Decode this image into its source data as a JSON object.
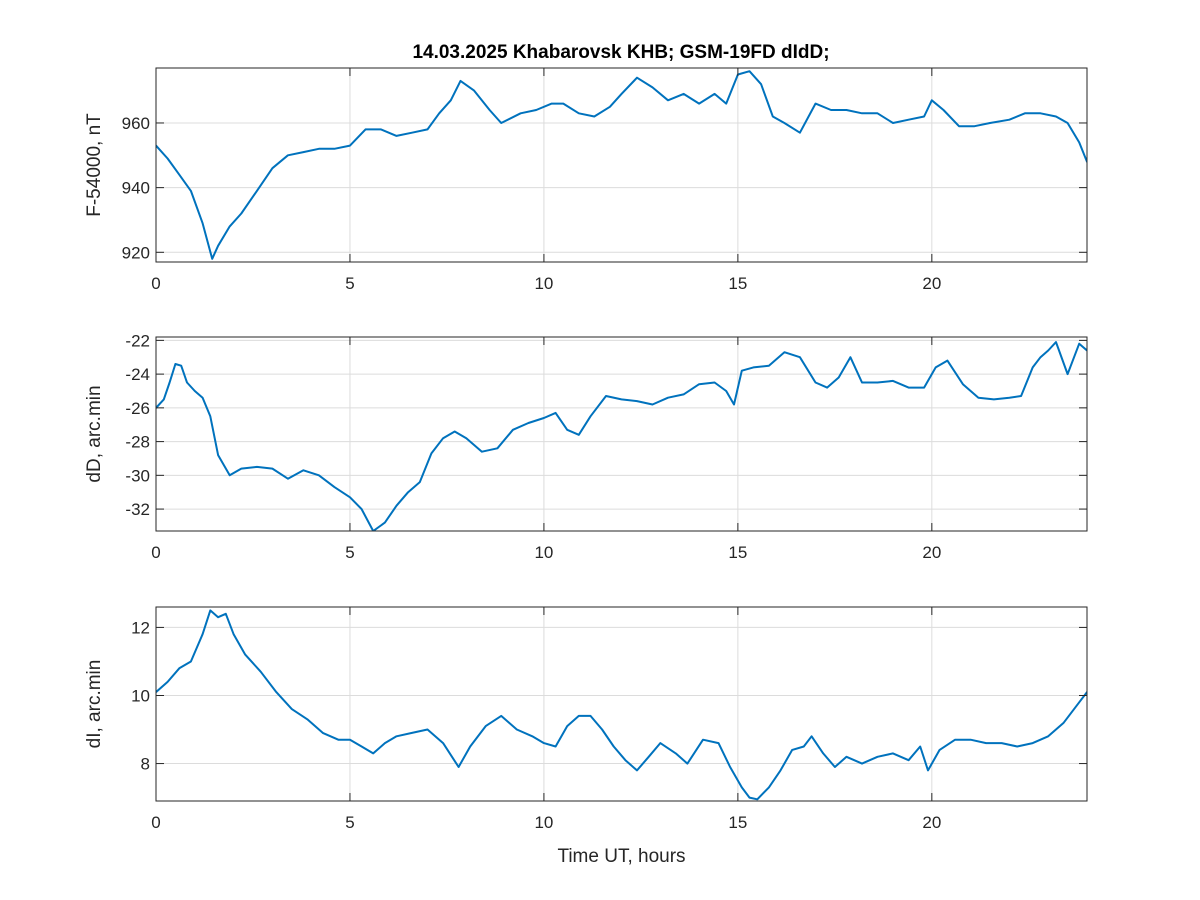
{
  "figure": {
    "title": "14.03.2025  Khabarovsk KHB; GSM-19FD dIdD;",
    "line_color": "#0072bd"
  },
  "chart_data": [
    {
      "type": "line",
      "ylabel": "F-54000, nT",
      "xlabel": "",
      "xlim": [
        0,
        24
      ],
      "ylim": [
        917,
        977
      ],
      "xticks": [
        0,
        5,
        10,
        15,
        20
      ],
      "yticks": [
        920,
        940,
        960
      ],
      "grid": true,
      "x": [
        0,
        0.3,
        0.6,
        0.9,
        1.2,
        1.45,
        1.6,
        1.9,
        2.2,
        2.6,
        3.0,
        3.4,
        3.8,
        4.2,
        4.6,
        5.0,
        5.4,
        5.8,
        6.2,
        6.6,
        7.0,
        7.3,
        7.6,
        7.85,
        8.2,
        8.6,
        8.9,
        9.4,
        9.8,
        10.2,
        10.5,
        10.9,
        11.3,
        11.7,
        12.0,
        12.4,
        12.8,
        13.2,
        13.6,
        14.0,
        14.4,
        14.7,
        15.0,
        15.3,
        15.6,
        15.9,
        16.2,
        16.6,
        17.0,
        17.4,
        17.8,
        18.2,
        18.6,
        19.0,
        19.4,
        19.8,
        20.0,
        20.3,
        20.7,
        21.1,
        21.5,
        22.0,
        22.4,
        22.8,
        23.2,
        23.5,
        23.8,
        24.0
      ],
      "values": [
        953,
        949,
        944,
        939,
        929,
        918,
        922,
        928,
        932,
        939,
        946,
        950,
        951,
        952,
        952,
        953,
        958,
        958,
        956,
        957,
        958,
        963,
        967,
        973,
        970,
        964,
        960,
        963,
        964,
        966,
        966,
        963,
        962,
        965,
        969,
        974,
        971,
        967,
        969,
        966,
        969,
        966,
        975,
        976,
        972,
        962,
        960,
        957,
        966,
        964,
        964,
        963,
        963,
        960,
        961,
        962,
        967,
        964,
        959,
        959,
        960,
        961,
        963,
        963,
        962,
        960,
        954,
        948
      ]
    },
    {
      "type": "line",
      "ylabel": "dD, arc.min",
      "xlabel": "",
      "xlim": [
        0,
        24
      ],
      "ylim": [
        -33.3,
        -21.8
      ],
      "xticks": [
        0,
        5,
        10,
        15,
        20
      ],
      "yticks": [
        -32,
        -30,
        -28,
        -26,
        -24,
        -22
      ],
      "grid": true,
      "x": [
        0,
        0.2,
        0.35,
        0.5,
        0.65,
        0.8,
        1.0,
        1.2,
        1.4,
        1.6,
        1.9,
        2.2,
        2.6,
        3.0,
        3.4,
        3.8,
        4.2,
        4.6,
        5.0,
        5.3,
        5.6,
        5.9,
        6.2,
        6.5,
        6.8,
        7.1,
        7.4,
        7.7,
        8.0,
        8.4,
        8.8,
        9.2,
        9.6,
        10.0,
        10.3,
        10.6,
        10.9,
        11.2,
        11.6,
        12.0,
        12.4,
        12.8,
        13.2,
        13.6,
        14.0,
        14.4,
        14.7,
        14.9,
        15.1,
        15.4,
        15.8,
        16.2,
        16.6,
        17.0,
        17.3,
        17.6,
        17.9,
        18.2,
        18.6,
        19.0,
        19.4,
        19.8,
        20.1,
        20.4,
        20.8,
        21.2,
        21.6,
        22.0,
        22.3,
        22.6,
        22.8,
        23.0,
        23.2,
        23.5,
        23.8,
        24.0
      ],
      "values": [
        -26,
        -25.5,
        -24.5,
        -23.4,
        -23.5,
        -24.5,
        -25,
        -25.4,
        -26.5,
        -28.8,
        -30,
        -29.6,
        -29.5,
        -29.6,
        -30.2,
        -29.7,
        -30,
        -30.7,
        -31.3,
        -32,
        -33.3,
        -32.8,
        -31.8,
        -31,
        -30.4,
        -28.7,
        -27.8,
        -27.4,
        -27.8,
        -28.6,
        -28.4,
        -27.3,
        -26.9,
        -26.6,
        -26.3,
        -27.3,
        -27.6,
        -26.5,
        -25.3,
        -25.5,
        -25.6,
        -25.8,
        -25.4,
        -25.2,
        -24.6,
        -24.5,
        -25,
        -25.8,
        -23.8,
        -23.6,
        -23.5,
        -22.7,
        -23,
        -24.5,
        -24.8,
        -24.2,
        -23,
        -24.5,
        -24.5,
        -24.4,
        -24.8,
        -24.8,
        -23.6,
        -23.2,
        -24.6,
        -25.4,
        -25.5,
        -25.4,
        -25.3,
        -23.6,
        -23,
        -22.6,
        -22.1,
        -24,
        -22.2,
        -22.6
      ]
    },
    {
      "type": "line",
      "ylabel": "dI, arc.min",
      "xlabel": "Time UT, hours",
      "xlim": [
        0,
        24
      ],
      "ylim": [
        6.9,
        12.6
      ],
      "xticks": [
        0,
        5,
        10,
        15,
        20
      ],
      "yticks": [
        8,
        10,
        12
      ],
      "grid": true,
      "x": [
        0,
        0.3,
        0.6,
        0.9,
        1.2,
        1.4,
        1.6,
        1.8,
        2.0,
        2.3,
        2.7,
        3.1,
        3.5,
        3.9,
        4.3,
        4.7,
        5.0,
        5.3,
        5.6,
        5.9,
        6.2,
        6.6,
        7.0,
        7.4,
        7.8,
        8.1,
        8.5,
        8.9,
        9.3,
        9.7,
        10.0,
        10.3,
        10.6,
        10.9,
        11.2,
        11.5,
        11.8,
        12.1,
        12.4,
        12.7,
        13.0,
        13.4,
        13.7,
        14.1,
        14.5,
        14.8,
        15.1,
        15.3,
        15.5,
        15.8,
        16.1,
        16.4,
        16.7,
        16.9,
        17.2,
        17.5,
        17.8,
        18.2,
        18.6,
        19.0,
        19.4,
        19.7,
        19.9,
        20.2,
        20.6,
        21.0,
        21.4,
        21.8,
        22.2,
        22.6,
        23.0,
        23.4,
        23.8,
        24.0
      ],
      "values": [
        10.1,
        10.4,
        10.8,
        11.0,
        11.8,
        12.5,
        12.3,
        12.4,
        11.8,
        11.2,
        10.7,
        10.1,
        9.6,
        9.3,
        8.9,
        8.7,
        8.7,
        8.5,
        8.3,
        8.6,
        8.8,
        8.9,
        9.0,
        8.6,
        7.9,
        8.5,
        9.1,
        9.4,
        9.0,
        8.8,
        8.6,
        8.5,
        9.1,
        9.4,
        9.4,
        9.0,
        8.5,
        8.1,
        7.8,
        8.2,
        8.6,
        8.3,
        8.0,
        8.7,
        8.6,
        7.9,
        7.3,
        7.0,
        6.95,
        7.3,
        7.8,
        8.4,
        8.5,
        8.8,
        8.3,
        7.9,
        8.2,
        8.0,
        8.2,
        8.3,
        8.1,
        8.5,
        7.8,
        8.4,
        8.7,
        8.7,
        8.6,
        8.6,
        8.5,
        8.6,
        8.8,
        9.2,
        9.8,
        10.1
      ]
    }
  ]
}
